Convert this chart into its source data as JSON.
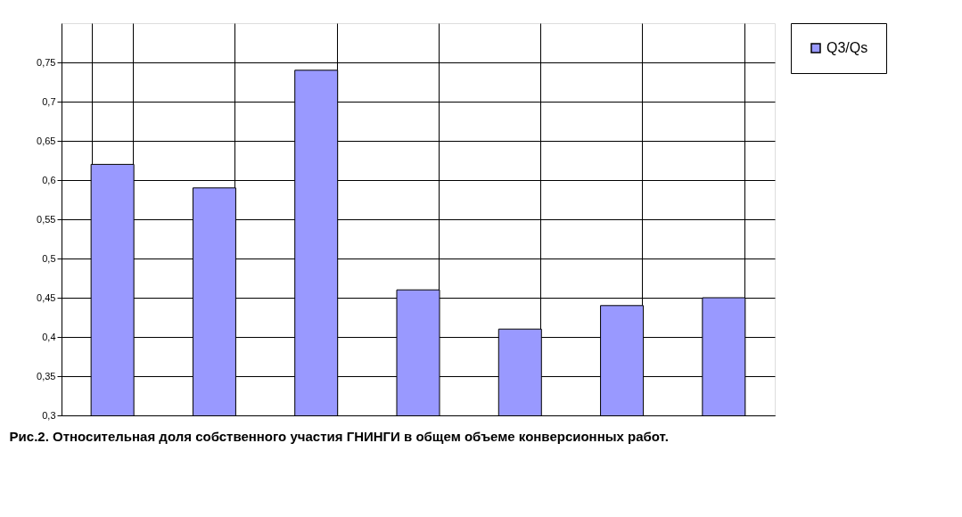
{
  "chart_data": {
    "type": "bar",
    "categories": [
      null,
      null,
      null,
      null,
      null,
      null,
      null
    ],
    "series": [
      {
        "name": "Q3/Qs",
        "color": "#9999ff",
        "values": [
          0.62,
          0.59,
          0.74,
          0.46,
          0.41,
          0.44,
          0.45
        ]
      }
    ],
    "ylim": [
      0.3,
      0.8
    ],
    "yticks": [
      {
        "value": 0.3,
        "label": "0,3"
      },
      {
        "value": 0.35,
        "label": "0,35"
      },
      {
        "value": 0.4,
        "label": "0,4"
      },
      {
        "value": 0.45,
        "label": "0,45"
      },
      {
        "value": 0.5,
        "label": "0,5"
      },
      {
        "value": 0.55,
        "label": "0,55"
      },
      {
        "value": 0.6,
        "label": "0,6"
      },
      {
        "value": 0.65,
        "label": "0,65"
      },
      {
        "value": 0.7,
        "label": "0,7"
      },
      {
        "value": 0.75,
        "label": "0,75"
      }
    ],
    "grid": true,
    "legend": "right",
    "annotations": [
      "Рис.2. Относительная доля собственного участия ГНИНГИ в общем объеме конверсионных работ."
    ]
  }
}
